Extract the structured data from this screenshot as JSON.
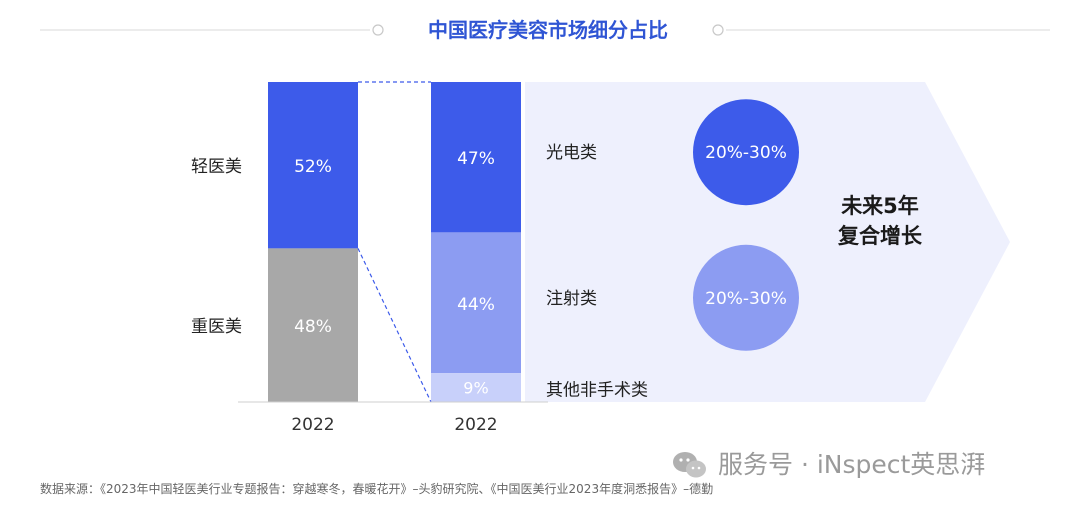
{
  "title": "中国医疗美容市场细分占比",
  "source": "数据来源：《2023年中国轻医美行业专题报告：穿越寒冬，春暖花开》–头豹研究院、《中国医美行业2023年度洞悉报告》–德勤",
  "watermark": "服务号 · iNspect英思湃",
  "growth_label": [
    "未来5年",
    "复合增长"
  ],
  "colors": {
    "primary_blue": "#3d5bea",
    "mid_blue": "#8c9cf2",
    "light_blue": "#c8d0fa",
    "gray": "#a8a8a8",
    "arrow_bg": "#eef0fd",
    "title_color": "#2f55d4"
  },
  "chart_data": [
    {
      "type": "bar",
      "stacked": true,
      "categories": [
        "2022"
      ],
      "series": [
        {
          "name": "轻医美",
          "values": [
            52
          ],
          "label": "52%",
          "color": "#3d5bea"
        },
        {
          "name": "重医美",
          "values": [
            48
          ],
          "label": "48%",
          "color": "#a8a8a8"
        }
      ]
    },
    {
      "type": "bar",
      "stacked": true,
      "categories": [
        "2022"
      ],
      "series": [
        {
          "name": "光电类",
          "values": [
            47
          ],
          "label": "47%",
          "color": "#3d5bea",
          "cagr": "20%-30%"
        },
        {
          "name": "注射类",
          "values": [
            44
          ],
          "label": "44%",
          "color": "#8c9cf2",
          "cagr": "20%-30%"
        },
        {
          "name": "其他非手术类",
          "values": [
            9
          ],
          "label": "9%",
          "color": "#c8d0fa"
        }
      ]
    }
  ]
}
